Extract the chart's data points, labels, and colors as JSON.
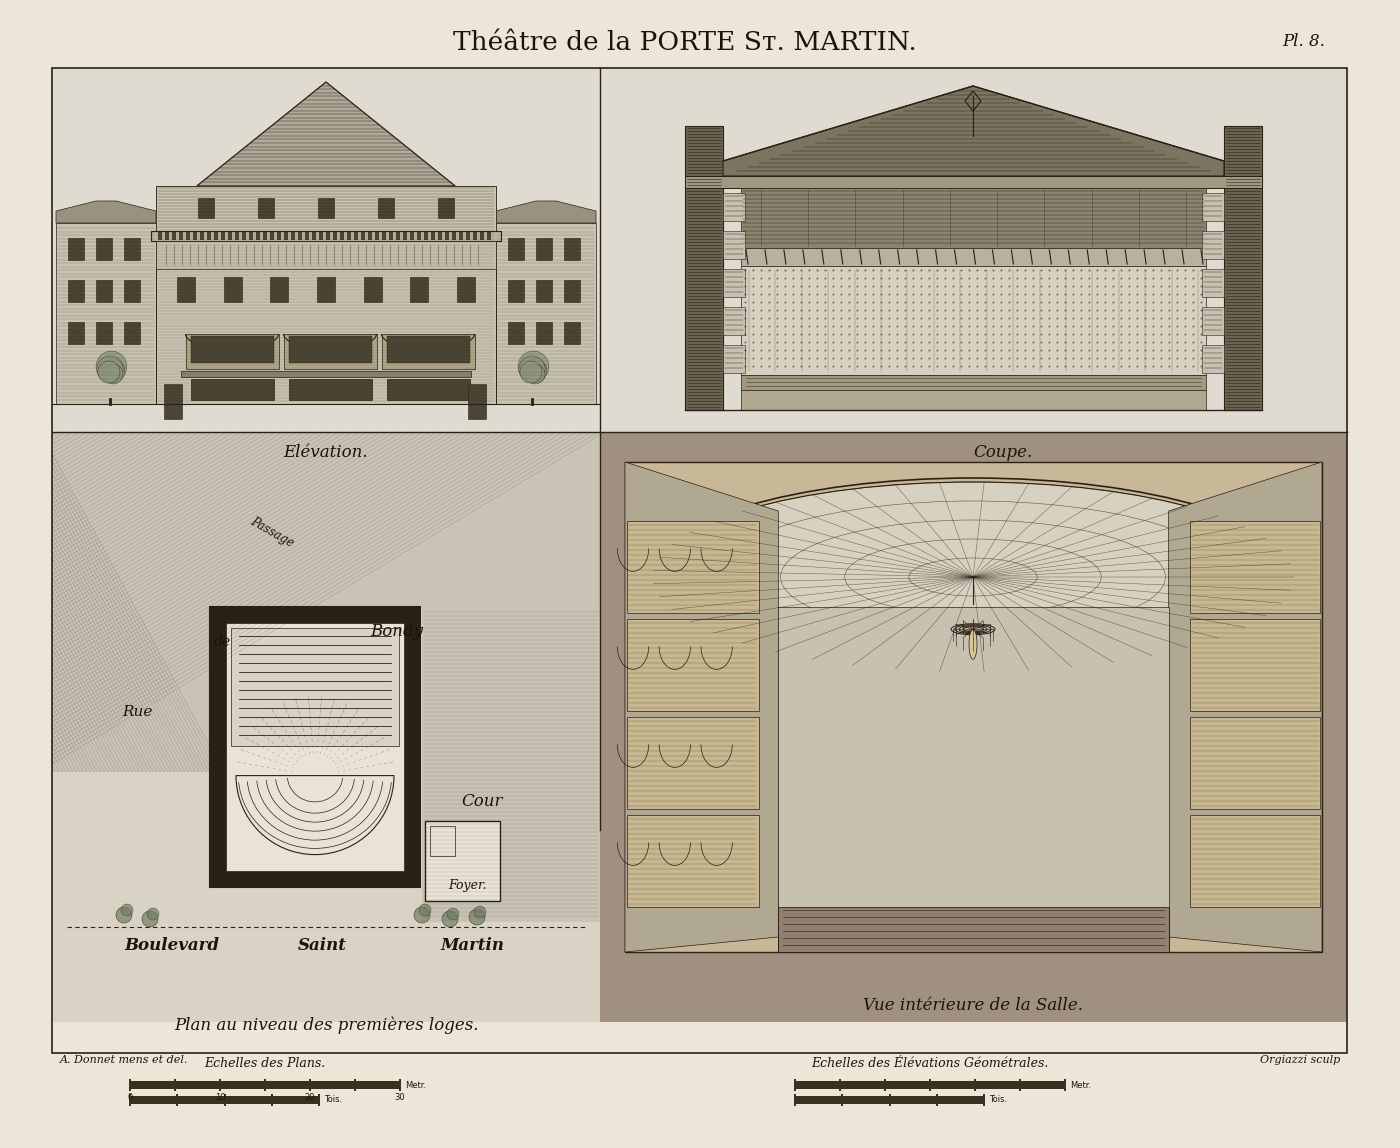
{
  "bg": "#ece6d8",
  "panel_bg": "#e8e2d3",
  "sky_bg": "#e0dbd0",
  "hatch_dark": "#5a5040",
  "line_col": "#2a2015",
  "text_col": "#1a1508",
  "fill_wall": "#c8c2b0",
  "fill_roof": "#9a9280",
  "fill_dark": "#4a4535",
  "fill_mid": "#8a8470",
  "fill_light": "#d5d0c0",
  "title": "Théâtre de la PORTE Sᴛ. MARTIN.",
  "plate": "Pl. 8.",
  "cap_elev": "Elévation.",
  "cap_coupe": "Coupe.",
  "cap_plan": "Plan au niveau des premières loges.",
  "cap_vue": "Vue intérieure de la Salle.",
  "lbl_passage": "Passage",
  "lbl_rue": "Rue",
  "lbl_de": "de",
  "lbl_bondy": "Bondy",
  "lbl_cour": "Cour",
  "lbl_foyer": "Foyer.",
  "lbl_blvd": "Boulevard",
  "lbl_saint": "Saint",
  "lbl_martin": "Martin",
  "credit_l": "A. Donnet mens et del.",
  "credit_r": "Orgiazzi sculp",
  "scale_l": "Echelles des Plans.",
  "scale_r": "Echelles des Élévations Géométrales."
}
